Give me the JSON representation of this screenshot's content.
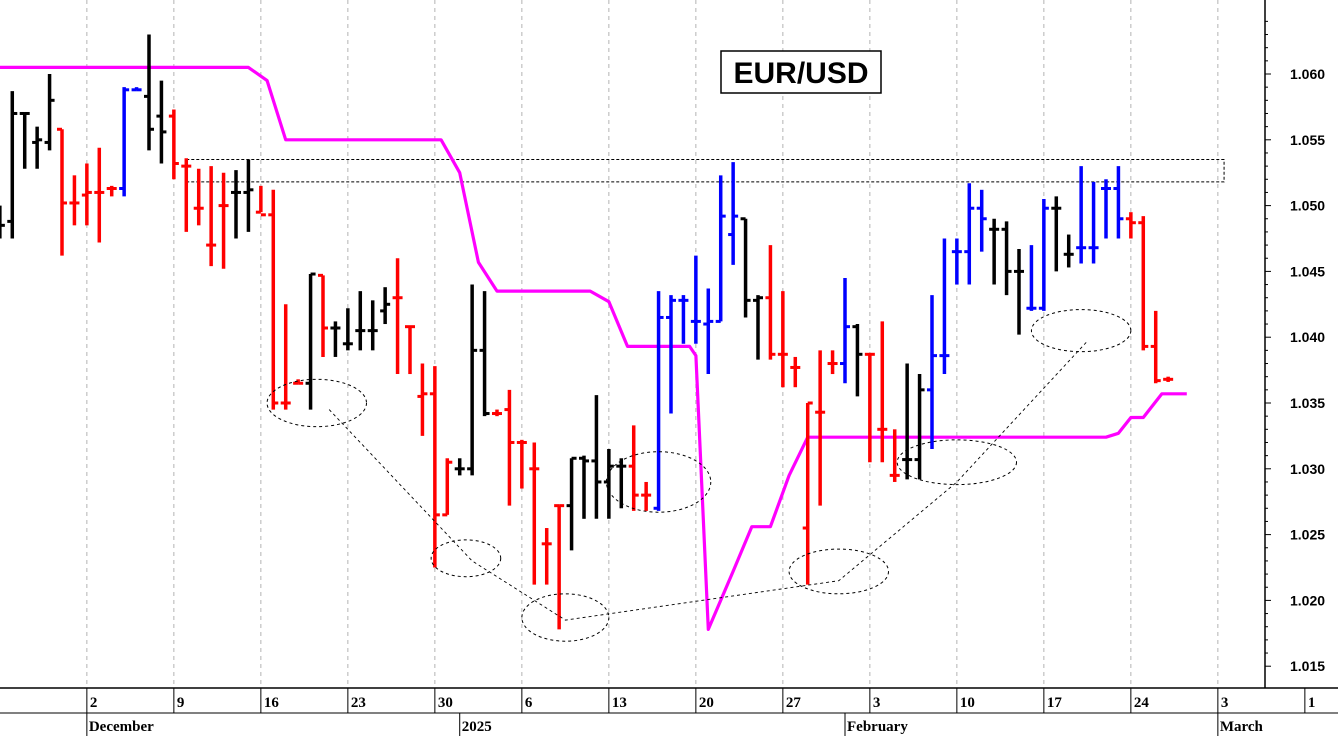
{
  "chart_data": {
    "type": "ohlc",
    "title": "EUR/USD",
    "ylim": [
      1.0125,
      1.0655
    ],
    "y_ticks": [
      "1.015",
      "1.020",
      "1.025",
      "1.030",
      "1.035",
      "1.040",
      "1.045",
      "1.050",
      "1.055",
      "1.060"
    ],
    "x_tick_labels": [
      {
        "label": "2",
        "day": 2
      },
      {
        "label": "9",
        "day": 9
      },
      {
        "label": "16",
        "day": 16
      },
      {
        "label": "23",
        "day": 23
      },
      {
        "label": "30",
        "day": 30
      },
      {
        "label": "6",
        "day": 37
      },
      {
        "label": "13",
        "day": 44
      },
      {
        "label": "20",
        "day": 51
      },
      {
        "label": "27",
        "day": 58
      },
      {
        "label": "3",
        "day": 65
      },
      {
        "label": "10",
        "day": 72
      },
      {
        "label": "17",
        "day": 79
      },
      {
        "label": "24",
        "day": 86
      },
      {
        "label": "3",
        "day": 93
      },
      {
        "label": "1",
        "day": 100
      }
    ],
    "month_labels": [
      {
        "label": "December",
        "day": 2
      },
      {
        "label": "2025",
        "day": 32
      },
      {
        "label": "February",
        "day": 63
      },
      {
        "label": "March",
        "day": 93
      }
    ],
    "bars": [
      {
        "day": -5,
        "o": 1.049,
        "h": 1.05,
        "l": 1.0475,
        "c": 1.0485,
        "color": "black"
      },
      {
        "day": -4,
        "o": 1.0488,
        "h": 1.0587,
        "l": 1.0475,
        "c": 1.057,
        "color": "black"
      },
      {
        "day": -3,
        "o": 1.057,
        "h": 1.0571,
        "l": 1.0528,
        "c": 1.057,
        "color": "black"
      },
      {
        "day": -2,
        "o": 1.0548,
        "h": 1.056,
        "l": 1.0528,
        "c": 1.055,
        "color": "black"
      },
      {
        "day": -1,
        "o": 1.0548,
        "h": 1.06,
        "l": 1.0542,
        "c": 1.058,
        "color": "black"
      },
      {
        "day": 0,
        "o": 1.0558,
        "h": 1.0558,
        "l": 1.0462,
        "c": 1.0502,
        "color": "red"
      },
      {
        "day": 1,
        "o": 1.0502,
        "h": 1.0523,
        "l": 1.0485,
        "c": 1.0502,
        "color": "red"
      },
      {
        "day": 2,
        "o": 1.0508,
        "h": 1.0532,
        "l": 1.0485,
        "c": 1.051,
        "color": "red"
      },
      {
        "day": 3,
        "o": 1.051,
        "h": 1.0544,
        "l": 1.0472,
        "c": 1.051,
        "color": "red"
      },
      {
        "day": 4,
        "o": 1.0513,
        "h": 1.0515,
        "l": 1.0507,
        "c": 1.0513,
        "color": "red"
      },
      {
        "day": 5,
        "o": 1.0513,
        "h": 1.059,
        "l": 1.0507,
        "c": 1.0588,
        "color": "blue"
      },
      {
        "day": 6,
        "o": 1.0588,
        "h": 1.059,
        "l": 1.0588,
        "c": 1.0588,
        "color": "blue"
      },
      {
        "day": 7,
        "o": 1.0583,
        "h": 1.063,
        "l": 1.0542,
        "c": 1.0558,
        "color": "black"
      },
      {
        "day": 8,
        "o": 1.0568,
        "h": 1.0595,
        "l": 1.0532,
        "c": 1.0556,
        "color": "black"
      },
      {
        "day": 9,
        "o": 1.0568,
        "h": 1.0573,
        "l": 1.052,
        "c": 1.0532,
        "color": "red"
      },
      {
        "day": 10,
        "o": 1.053,
        "h": 1.0536,
        "l": 1.048,
        "c": 1.053,
        "color": "red"
      },
      {
        "day": 11,
        "o": 1.0498,
        "h": 1.0528,
        "l": 1.0485,
        "c": 1.0498,
        "color": "red"
      },
      {
        "day": 12,
        "o": 1.047,
        "h": 1.053,
        "l": 1.0454,
        "c": 1.047,
        "color": "red"
      },
      {
        "day": 13,
        "o": 1.05,
        "h": 1.0525,
        "l": 1.0452,
        "c": 1.05,
        "color": "red"
      },
      {
        "day": 14,
        "o": 1.051,
        "h": 1.0527,
        "l": 1.0475,
        "c": 1.051,
        "color": "black"
      },
      {
        "day": 15,
        "o": 1.051,
        "h": 1.0535,
        "l": 1.048,
        "c": 1.0512,
        "color": "black"
      },
      {
        "day": 16,
        "o": 1.0495,
        "h": 1.0515,
        "l": 1.0495,
        "c": 1.0493,
        "color": "red"
      },
      {
        "day": 17,
        "o": 1.0493,
        "h": 1.0512,
        "l": 1.0345,
        "c": 1.035,
        "color": "red"
      },
      {
        "day": 18,
        "o": 1.035,
        "h": 1.0425,
        "l": 1.0345,
        "c": 1.035,
        "color": "red"
      },
      {
        "day": 19,
        "o": 1.0365,
        "h": 1.0368,
        "l": 1.0365,
        "c": 1.0365,
        "color": "red"
      },
      {
        "day": 20,
        "o": 1.0365,
        "h": 1.0448,
        "l": 1.0345,
        "c": 1.0448,
        "color": "black"
      },
      {
        "day": 21,
        "o": 1.0447,
        "h": 1.0447,
        "l": 1.0385,
        "c": 1.0407,
        "color": "red"
      },
      {
        "day": 22,
        "o": 1.0407,
        "h": 1.0412,
        "l": 1.0385,
        "c": 1.0407,
        "color": "black"
      },
      {
        "day": 23,
        "o": 1.0395,
        "h": 1.0422,
        "l": 1.039,
        "c": 1.0395,
        "color": "black"
      },
      {
        "day": 24,
        "o": 1.0405,
        "h": 1.0435,
        "l": 1.039,
        "c": 1.0405,
        "color": "black"
      },
      {
        "day": 25,
        "o": 1.0405,
        "h": 1.0428,
        "l": 1.039,
        "c": 1.0405,
        "color": "black"
      },
      {
        "day": 26,
        "o": 1.042,
        "h": 1.0438,
        "l": 1.041,
        "c": 1.0425,
        "color": "black"
      },
      {
        "day": 27,
        "o": 1.043,
        "h": 1.046,
        "l": 1.0372,
        "c": 1.043,
        "color": "red"
      },
      {
        "day": 28,
        "o": 1.0408,
        "h": 1.0408,
        "l": 1.0372,
        "c": 1.0408,
        "color": "red"
      },
      {
        "day": 29,
        "o": 1.0355,
        "h": 1.038,
        "l": 1.0325,
        "c": 1.0357,
        "color": "red"
      },
      {
        "day": 30,
        "o": 1.0357,
        "h": 1.0378,
        "l": 1.0225,
        "c": 1.0265,
        "color": "red"
      },
      {
        "day": 31,
        "o": 1.0265,
        "h": 1.0308,
        "l": 1.0265,
        "c": 1.0305,
        "color": "red"
      },
      {
        "day": 32,
        "o": 1.03,
        "h": 1.0308,
        "l": 1.0295,
        "c": 1.03,
        "color": "black"
      },
      {
        "day": 33,
        "o": 1.03,
        "h": 1.044,
        "l": 1.0295,
        "c": 1.039,
        "color": "black"
      },
      {
        "day": 34,
        "o": 1.039,
        "h": 1.0435,
        "l": 1.034,
        "c": 1.0342,
        "color": "black"
      },
      {
        "day": 35,
        "o": 1.0342,
        "h": 1.0345,
        "l": 1.034,
        "c": 1.0342,
        "color": "red"
      },
      {
        "day": 36,
        "o": 1.0345,
        "h": 1.036,
        "l": 1.0272,
        "c": 1.032,
        "color": "red"
      },
      {
        "day": 37,
        "o": 1.032,
        "h": 1.0322,
        "l": 1.0285,
        "c": 1.032,
        "color": "red"
      },
      {
        "day": 38,
        "o": 1.03,
        "h": 1.032,
        "l": 1.0212,
        "c": 1.03,
        "color": "red"
      },
      {
        "day": 39,
        "o": 1.0243,
        "h": 1.0255,
        "l": 1.0212,
        "c": 1.0243,
        "color": "red"
      },
      {
        "day": 40,
        "o": 1.0272,
        "h": 1.0272,
        "l": 1.0178,
        "c": 1.0272,
        "color": "red"
      },
      {
        "day": 41,
        "o": 1.0272,
        "h": 1.0308,
        "l": 1.0238,
        "c": 1.0308,
        "color": "black"
      },
      {
        "day": 42,
        "o": 1.0308,
        "h": 1.031,
        "l": 1.0262,
        "c": 1.0306,
        "color": "black"
      },
      {
        "day": 43,
        "o": 1.0306,
        "h": 1.0356,
        "l": 1.0262,
        "c": 1.029,
        "color": "black"
      },
      {
        "day": 44,
        "o": 1.029,
        "h": 1.0315,
        "l": 1.0262,
        "c": 1.0302,
        "color": "black"
      },
      {
        "day": 45,
        "o": 1.0302,
        "h": 1.0308,
        "l": 1.027,
        "c": 1.0302,
        "color": "black"
      },
      {
        "day": 46,
        "o": 1.0302,
        "h": 1.0333,
        "l": 1.0268,
        "c": 1.028,
        "color": "red"
      },
      {
        "day": 47,
        "o": 1.028,
        "h": 1.029,
        "l": 1.0268,
        "c": 1.028,
        "color": "red"
      },
      {
        "day": 48,
        "o": 1.027,
        "h": 1.0435,
        "l": 1.0268,
        "c": 1.0415,
        "color": "blue"
      },
      {
        "day": 49,
        "o": 1.0415,
        "h": 1.0432,
        "l": 1.0342,
        "c": 1.0428,
        "color": "blue"
      },
      {
        "day": 50,
        "o": 1.0428,
        "h": 1.0432,
        "l": 1.0395,
        "c": 1.0428,
        "color": "blue"
      },
      {
        "day": 51,
        "o": 1.0412,
        "h": 1.0462,
        "l": 1.0395,
        "c": 1.0412,
        "color": "blue"
      },
      {
        "day": 52,
        "o": 1.041,
        "h": 1.0437,
        "l": 1.0372,
        "c": 1.0412,
        "color": "blue"
      },
      {
        "day": 53,
        "o": 1.0412,
        "h": 1.0523,
        "l": 1.0412,
        "c": 1.0492,
        "color": "blue"
      },
      {
        "day": 54,
        "o": 1.0478,
        "h": 1.0533,
        "l": 1.0455,
        "c": 1.0492,
        "color": "blue"
      },
      {
        "day": 55,
        "o": 1.049,
        "h": 1.049,
        "l": 1.0415,
        "c": 1.0428,
        "color": "black"
      },
      {
        "day": 56,
        "o": 1.0428,
        "h": 1.0432,
        "l": 1.0383,
        "c": 1.043,
        "color": "black"
      },
      {
        "day": 57,
        "o": 1.043,
        "h": 1.047,
        "l": 1.0383,
        "c": 1.0387,
        "color": "red"
      },
      {
        "day": 58,
        "o": 1.0387,
        "h": 1.0435,
        "l": 1.0362,
        "c": 1.0387,
        "color": "red"
      },
      {
        "day": 59,
        "o": 1.0377,
        "h": 1.0385,
        "l": 1.0362,
        "c": 1.0377,
        "color": "red"
      },
      {
        "day": 60,
        "o": 1.0255,
        "h": 1.035,
        "l": 1.0212,
        "c": 1.035,
        "color": "red"
      },
      {
        "day": 61,
        "o": 1.0343,
        "h": 1.039,
        "l": 1.0272,
        "c": 1.0343,
        "color": "red"
      },
      {
        "day": 62,
        "o": 1.038,
        "h": 1.039,
        "l": 1.0372,
        "c": 1.038,
        "color": "red"
      },
      {
        "day": 63,
        "o": 1.038,
        "h": 1.0445,
        "l": 1.0365,
        "c": 1.0408,
        "color": "blue"
      },
      {
        "day": 64,
        "o": 1.0408,
        "h": 1.041,
        "l": 1.0355,
        "c": 1.0387,
        "color": "black"
      },
      {
        "day": 65,
        "o": 1.0387,
        "h": 1.0388,
        "l": 1.0305,
        "c": 1.0387,
        "color": "red"
      },
      {
        "day": 66,
        "o": 1.033,
        "h": 1.0412,
        "l": 1.0305,
        "c": 1.033,
        "color": "red"
      },
      {
        "day": 67,
        "o": 1.0295,
        "h": 1.033,
        "l": 1.029,
        "c": 1.0295,
        "color": "red"
      },
      {
        "day": 68,
        "o": 1.0307,
        "h": 1.038,
        "l": 1.0292,
        "c": 1.0307,
        "color": "black"
      },
      {
        "day": 69,
        "o": 1.0307,
        "h": 1.0372,
        "l": 1.0292,
        "c": 1.036,
        "color": "black"
      },
      {
        "day": 70,
        "o": 1.036,
        "h": 1.0432,
        "l": 1.0315,
        "c": 1.0386,
        "color": "blue"
      },
      {
        "day": 71,
        "o": 1.0386,
        "h": 1.0475,
        "l": 1.0372,
        "c": 1.0386,
        "color": "blue"
      },
      {
        "day": 72,
        "o": 1.0465,
        "h": 1.0475,
        "l": 1.044,
        "c": 1.0465,
        "color": "blue"
      },
      {
        "day": 73,
        "o": 1.0465,
        "h": 1.0517,
        "l": 1.044,
        "c": 1.0498,
        "color": "blue"
      },
      {
        "day": 74,
        "o": 1.0498,
        "h": 1.0512,
        "l": 1.0465,
        "c": 1.049,
        "color": "blue"
      },
      {
        "day": 75,
        "o": 1.0482,
        "h": 1.049,
        "l": 1.044,
        "c": 1.0482,
        "color": "black"
      },
      {
        "day": 76,
        "o": 1.0482,
        "h": 1.0488,
        "l": 1.0432,
        "c": 1.045,
        "color": "black"
      },
      {
        "day": 77,
        "o": 1.045,
        "h": 1.0467,
        "l": 1.0402,
        "c": 1.045,
        "color": "black"
      },
      {
        "day": 78,
        "o": 1.0422,
        "h": 1.047,
        "l": 1.042,
        "c": 1.0422,
        "color": "blue"
      },
      {
        "day": 79,
        "o": 1.0422,
        "h": 1.0505,
        "l": 1.042,
        "c": 1.0498,
        "color": "blue"
      },
      {
        "day": 80,
        "o": 1.0498,
        "h": 1.0507,
        "l": 1.045,
        "c": 1.0498,
        "color": "black"
      },
      {
        "day": 81,
        "o": 1.0463,
        "h": 1.0478,
        "l": 1.0453,
        "c": 1.0463,
        "color": "black"
      },
      {
        "day": 82,
        "o": 1.0468,
        "h": 1.053,
        "l": 1.0456,
        "c": 1.0468,
        "color": "blue"
      },
      {
        "day": 83,
        "o": 1.0468,
        "h": 1.0518,
        "l": 1.0456,
        "c": 1.0468,
        "color": "blue"
      },
      {
        "day": 84,
        "o": 1.0513,
        "h": 1.052,
        "l": 1.0475,
        "c": 1.0513,
        "color": "blue"
      },
      {
        "day": 85,
        "o": 1.0513,
        "h": 1.053,
        "l": 1.0475,
        "c": 1.049,
        "color": "blue"
      },
      {
        "day": 86,
        "o": 1.049,
        "h": 1.0495,
        "l": 1.0475,
        "c": 1.0487,
        "color": "red"
      },
      {
        "day": 87,
        "o": 1.0487,
        "h": 1.0492,
        "l": 1.039,
        "c": 1.0393,
        "color": "red"
      },
      {
        "day": 88,
        "o": 1.0393,
        "h": 1.042,
        "l": 1.0365,
        "c": 1.0367,
        "color": "red"
      },
      {
        "day": 89,
        "o": 1.0368,
        "h": 1.037,
        "l": 1.0366,
        "c": 1.0368,
        "color": "red"
      }
    ],
    "magenta_line": [
      [
        -5,
        1.0605
      ],
      [
        15,
        1.0605
      ],
      [
        16.5,
        1.0595
      ],
      [
        18,
        1.055
      ],
      [
        30.5,
        1.055
      ],
      [
        32,
        1.0525
      ],
      [
        33.5,
        1.0457
      ],
      [
        35,
        1.0435
      ],
      [
        42.5,
        1.0435
      ],
      [
        44,
        1.0427
      ],
      [
        45.5,
        1.0393
      ],
      [
        50.5,
        1.0393
      ],
      [
        51,
        1.0386
      ],
      [
        52,
        1.0178
      ],
      [
        54,
        1.0222
      ],
      [
        55.5,
        1.0256
      ],
      [
        57,
        1.0256
      ],
      [
        58.5,
        1.0295
      ],
      [
        60,
        1.0324
      ],
      [
        84,
        1.0324
      ],
      [
        85,
        1.0327
      ],
      [
        86,
        1.0339
      ],
      [
        87,
        1.0339
      ],
      [
        88.5,
        1.0357
      ],
      [
        90.5,
        1.0357
      ]
    ],
    "resistance_band": {
      "x1": 10,
      "x2": 93.5,
      "y1": 1.0518,
      "y2": 1.0535
    },
    "ellipses": [
      {
        "cx": 20.5,
        "cy": 1.035,
        "rx": 4.0,
        "ry": 0.0018
      },
      {
        "cx": 32.5,
        "cy": 1.0232,
        "rx": 2.8,
        "ry": 0.0014
      },
      {
        "cx": 40.5,
        "cy": 1.0187,
        "rx": 3.5,
        "ry": 0.0018
      },
      {
        "cx": 48.0,
        "cy": 1.029,
        "rx": 4.2,
        "ry": 0.0023
      },
      {
        "cx": 62.5,
        "cy": 1.0222,
        "rx": 4.0,
        "ry": 0.0017
      },
      {
        "cx": 72.0,
        "cy": 1.0305,
        "rx": 4.8,
        "ry": 0.0017
      },
      {
        "cx": 82.0,
        "cy": 1.0405,
        "rx": 4.0,
        "ry": 0.0016
      }
    ],
    "trend_lines": [
      [
        [
          21.5,
          1.0345
        ],
        [
          33.0,
          1.023
        ],
        [
          40.5,
          1.0185
        ],
        [
          62.5,
          1.0215
        ],
        [
          72.0,
          1.029
        ],
        [
          82.5,
          1.0397
        ]
      ]
    ],
    "colors": {
      "red": "#ff0000",
      "blue": "#0000ff",
      "black": "#000000",
      "magenta": "#ff00ff",
      "grid": "#b4b4b4"
    }
  }
}
